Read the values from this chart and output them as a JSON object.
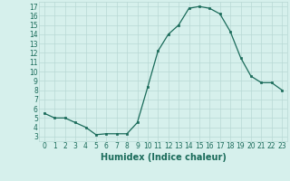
{
  "x": [
    0,
    1,
    2,
    3,
    4,
    5,
    6,
    7,
    8,
    9,
    10,
    11,
    12,
    13,
    14,
    15,
    16,
    17,
    18,
    19,
    20,
    21,
    22,
    23
  ],
  "y": [
    5.5,
    5.0,
    5.0,
    4.5,
    4.0,
    3.2,
    3.3,
    3.3,
    3.3,
    4.5,
    8.3,
    12.2,
    14.0,
    15.0,
    16.8,
    17.0,
    16.8,
    16.2,
    14.3,
    11.5,
    9.5,
    8.8,
    8.8,
    8.0
  ],
  "line_color": "#1a6b5a",
  "marker": "s",
  "marker_size": 2.0,
  "bg_color": "#d6f0ec",
  "grid_color": "#b8d8d4",
  "xlabel": "Humidex (Indice chaleur)",
  "xlabel_fontsize": 7,
  "xlim": [
    -0.5,
    23.5
  ],
  "ylim": [
    2.5,
    17.5
  ],
  "yticks": [
    3,
    4,
    5,
    6,
    7,
    8,
    9,
    10,
    11,
    12,
    13,
    14,
    15,
    16,
    17
  ],
  "xticks": [
    0,
    1,
    2,
    3,
    4,
    5,
    6,
    7,
    8,
    9,
    10,
    11,
    12,
    13,
    14,
    15,
    16,
    17,
    18,
    19,
    20,
    21,
    22,
    23
  ],
  "tick_fontsize": 5.5,
  "tick_color": "#1a6b5a",
  "linewidth": 0.9
}
